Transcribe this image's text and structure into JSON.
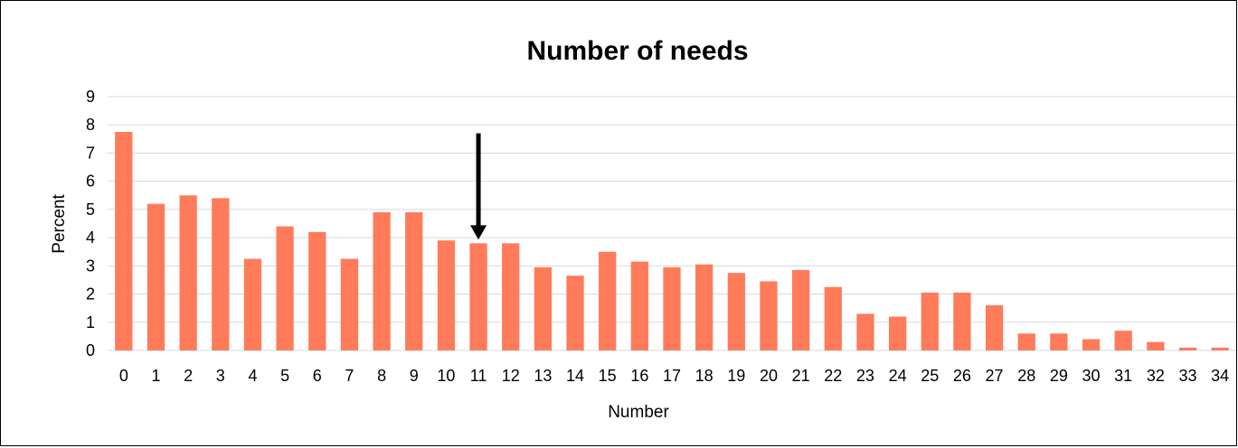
{
  "chart_data": {
    "type": "bar",
    "title": "Number of needs",
    "xlabel": "Number",
    "ylabel": "Percent",
    "ylim": [
      0,
      9
    ],
    "yticks": [
      "0",
      "1",
      "2",
      "3",
      "4",
      "5",
      "6",
      "7",
      "8",
      "9"
    ],
    "categories": [
      "0",
      "1",
      "2",
      "3",
      "4",
      "5",
      "6",
      "7",
      "8",
      "9",
      "10",
      "11",
      "12",
      "13",
      "14",
      "15",
      "16",
      "17",
      "18",
      "19",
      "20",
      "21",
      "22",
      "23",
      "24",
      "25",
      "26",
      "27",
      "28",
      "29",
      "30",
      "31",
      "32",
      "33",
      "34"
    ],
    "values": [
      7.75,
      5.2,
      5.5,
      5.4,
      3.25,
      4.4,
      4.2,
      3.25,
      4.9,
      4.9,
      3.9,
      3.8,
      3.8,
      2.95,
      2.65,
      3.5,
      3.15,
      2.95,
      3.05,
      2.75,
      2.45,
      2.85,
      2.25,
      1.3,
      1.2,
      2.05,
      2.05,
      1.6,
      0.6,
      0.6,
      0.4,
      0.7,
      0.3,
      0.1,
      0.1
    ],
    "grid": true,
    "annotation": {
      "type": "arrow",
      "category": "11",
      "direction": "down"
    },
    "colors": {
      "bar": "#FF7B5A",
      "grid": "#D9D9D9",
      "arrow": "#000000"
    }
  }
}
